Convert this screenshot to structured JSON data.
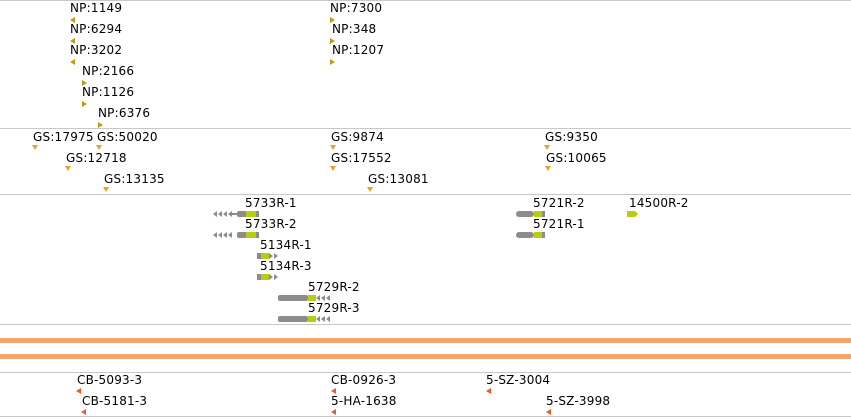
{
  "colors": {
    "np_marker": "#c49a14",
    "gs_marker": "#e8a421",
    "feature_gray": "#8c8c8c",
    "feature_lime": "#b8cc14",
    "band": "#f4a46e",
    "clone_marker": "#ee5a24",
    "divider": "#c8c8c8"
  },
  "tracks": {
    "np": {
      "labels": [
        "NP:1149",
        "NP:6294",
        "NP:3202",
        "NP:2166",
        "NP:1126",
        "NP:6376",
        "NP:7300",
        "NP:348",
        "NP:1207"
      ]
    },
    "gs": {
      "labels": [
        "GS:17975",
        "GS:50020",
        "GS:12718",
        "GS:13135",
        "GS:9874",
        "GS:17552",
        "GS:13081",
        "GS:9350",
        "GS:10065"
      ]
    },
    "features": {
      "labels": [
        "5733R-1",
        "5733R-2",
        "5134R-1",
        "5134R-3",
        "5729R-2",
        "5729R-3",
        "5721R-2",
        "5721R-1",
        "14500R-2"
      ]
    },
    "clones": {
      "labels": [
        "CB-5093-3",
        "CB-5181-3",
        "CB-0926-3",
        "5-HA-1638",
        "5-SZ-3004",
        "5-SZ-3998"
      ]
    }
  }
}
